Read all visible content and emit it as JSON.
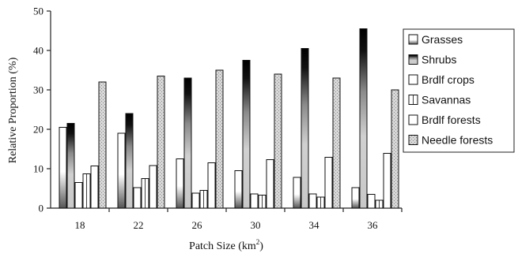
{
  "chart_data": {
    "type": "bar",
    "xlabel": "Patch Size (km²)",
    "xlabel_main": "Patch Size (km",
    "xlabel_sup": "2",
    "xlabel_end": ")",
    "ylabel": "Relative Proportion (%)",
    "ylim": [
      0,
      50
    ],
    "yticks": [
      0,
      10,
      20,
      30,
      40,
      50
    ],
    "categories": [
      "18",
      "22",
      "26",
      "30",
      "34",
      "36"
    ],
    "series": [
      {
        "name": "Grasses",
        "values": [
          20.5,
          19,
          12.5,
          9.5,
          7.8,
          5.2
        ],
        "color": "#ffffff",
        "pattern": "grasses"
      },
      {
        "name": "Shrubs",
        "values": [
          21.5,
          24,
          33,
          37.5,
          40.5,
          45.5
        ],
        "color": "#111111",
        "pattern": "shrubs"
      },
      {
        "name": "Brdlf crops",
        "values": [
          6.5,
          5.2,
          3.8,
          3.6,
          3.6,
          3.5
        ],
        "color": "#ffffff",
        "pattern": "none"
      },
      {
        "name": "Savannas",
        "values": [
          8.7,
          7.5,
          4.5,
          3.3,
          2.8,
          2.0
        ],
        "color": "#ffffff",
        "pattern": "none"
      },
      {
        "name": "Brdlf forests",
        "values": [
          10.7,
          10.8,
          11.5,
          12.3,
          12.9,
          13.9
        ],
        "color": "#ffffff",
        "pattern": "none"
      },
      {
        "name": "Needle forests",
        "values": [
          32,
          33.5,
          35,
          34,
          33,
          30
        ],
        "color": "#ffffff",
        "pattern": "needle"
      }
    ],
    "legend_position": "right"
  }
}
